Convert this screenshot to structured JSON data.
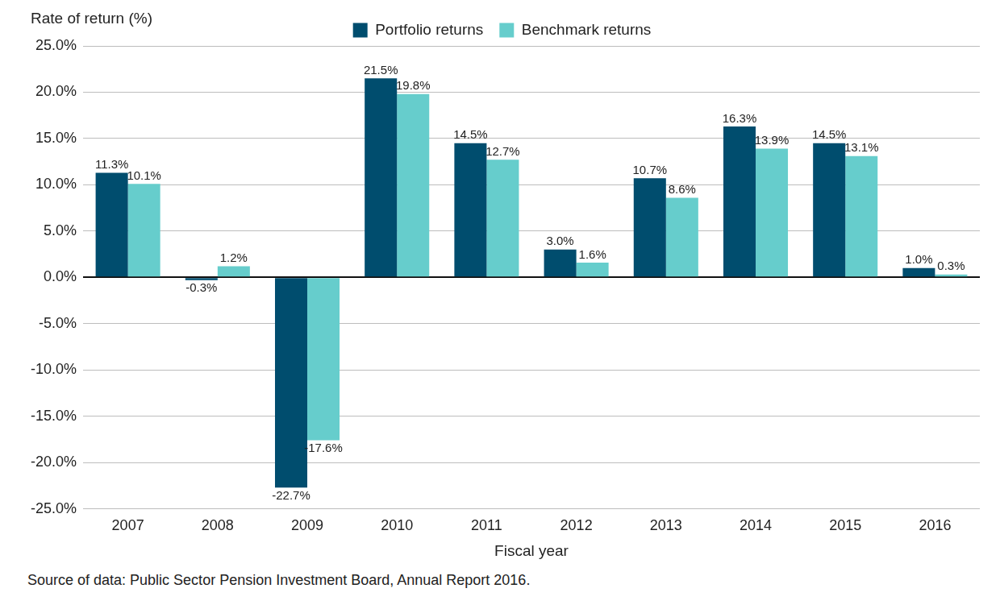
{
  "chart_data": {
    "type": "bar",
    "y_label": "Rate of return (%)",
    "x_label": "Fiscal year",
    "source": "Source of data: Public Sector Pension Investment Board, Annual Report 2016.",
    "categories": [
      "2007",
      "2008",
      "2009",
      "2010",
      "2011",
      "2012",
      "2013",
      "2014",
      "2015",
      "2016"
    ],
    "series": [
      {
        "name": "Portfolio returns",
        "color": "#004d6e",
        "values": [
          11.3,
          -0.3,
          -22.7,
          21.5,
          14.5,
          3.0,
          10.7,
          16.3,
          14.5,
          1.0
        ],
        "value_labels": [
          "11.3%",
          "-0.3%",
          "-22.7%",
          "21.5%",
          "14.5%",
          "3.0%",
          "10.7%",
          "16.3%",
          "14.5%",
          "1.0%"
        ]
      },
      {
        "name": "Benchmark returns",
        "color": "#66cdcc",
        "values": [
          10.1,
          1.2,
          -17.6,
          19.8,
          12.7,
          1.6,
          8.6,
          13.9,
          13.1,
          0.3
        ],
        "value_labels": [
          "10.1%",
          "1.2%",
          "-17.6%",
          "19.8%",
          "12.7%",
          "1.6%",
          "8.6%",
          "13.9%",
          "13.1%",
          "0.3%"
        ]
      }
    ],
    "ylim": [
      -25,
      25
    ],
    "yticks": [
      {
        "value": -25,
        "label": "-25.0%"
      },
      {
        "value": -20,
        "label": "-20.0%"
      },
      {
        "value": -15,
        "label": "-15.0%"
      },
      {
        "value": -10,
        "label": "-10.0%"
      },
      {
        "value": -5,
        "label": "-5.0%"
      },
      {
        "value": 0,
        "label": "0.0%"
      },
      {
        "value": 5,
        "label": "5.0%"
      },
      {
        "value": 10,
        "label": "10.0%"
      },
      {
        "value": 15,
        "label": "15.0%"
      },
      {
        "value": 20,
        "label": "20.0%"
      },
      {
        "value": 25,
        "label": "25.0%"
      }
    ],
    "grid": true,
    "legend": "top",
    "data_labels": true
  }
}
